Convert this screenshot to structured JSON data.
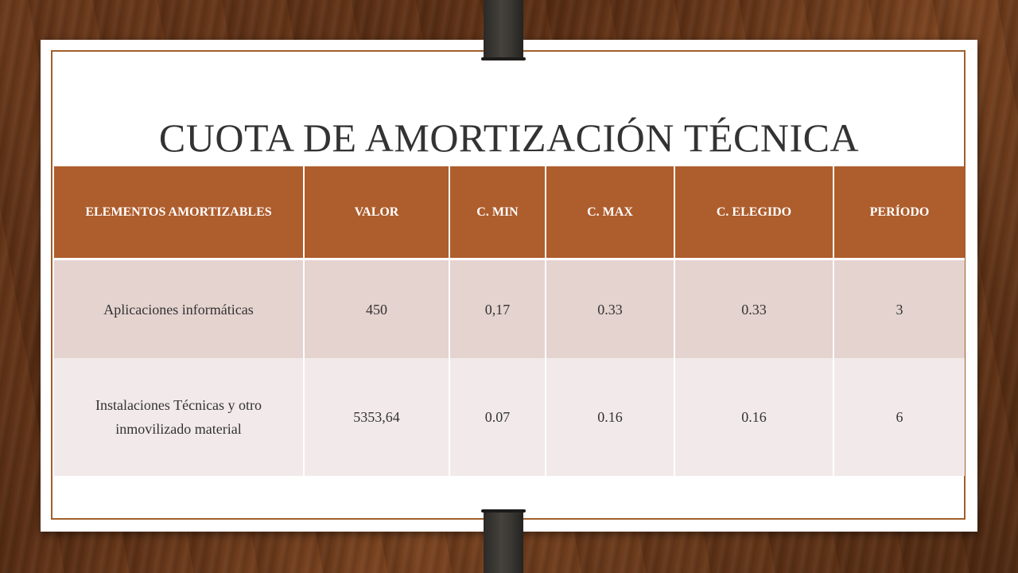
{
  "slide": {
    "title": "CUOTA DE AMORTIZACIÓN TÉCNICA"
  },
  "table": {
    "headers": [
      "ELEMENTOS AMORTIZABLES",
      "VALOR",
      "C. MIN",
      "C. MAX",
      "C. ELEGIDO",
      "PERÍODO"
    ],
    "rows": [
      [
        "Aplicaciones informáticas",
        "450",
        "0,17",
        "0.33",
        "0.33",
        "3"
      ],
      [
        "Instalaciones Técnicas y otro inmovilizado material",
        "5353,64",
        "0.07",
        "0.16",
        "0.16",
        "6"
      ]
    ]
  },
  "colors": {
    "header_bg": "#ae5d2c",
    "row_odd_bg": "#e4d3ce",
    "row_even_bg": "#f2eaea",
    "frame": "#a0602c",
    "strap": "#3a3733"
  }
}
